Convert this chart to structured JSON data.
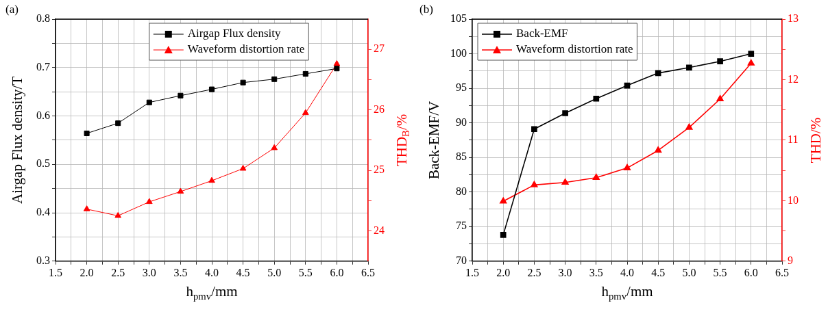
{
  "chart_data": [
    {
      "type": "line",
      "title": "(a)",
      "xlabel": "h$_{pmv}$/mm",
      "ylabel": "Airgap Flux density/T",
      "y2label": "THD$_{B}$/%",
      "x": [
        2.0,
        2.5,
        3.0,
        3.5,
        4.0,
        4.5,
        5.0,
        5.5,
        6.0
      ],
      "series": [
        {
          "name": "Airgap Flux density",
          "color": "#000000",
          "marker": "square",
          "values": [
            0.564,
            0.585,
            0.628,
            0.642,
            0.655,
            0.669,
            0.676,
            0.687,
            0.698
          ]
        },
        {
          "name": "Waveform distortion rate",
          "color": "#ff0000",
          "marker": "triangle",
          "axis": "y2",
          "values": [
            24.36,
            24.25,
            24.48,
            24.65,
            24.83,
            25.03,
            25.37,
            25.95,
            26.76
          ]
        }
      ],
      "xlim": [
        1.5,
        6.5
      ],
      "xticks": [
        {
          "value": 1.5,
          "label": "1.5"
        },
        {
          "value": 1.75,
          "label": null
        },
        {
          "value": 2,
          "label": "2.0"
        },
        {
          "value": 2.25,
          "label": null
        },
        {
          "value": 2.5,
          "label": "2.5"
        },
        {
          "value": 2.75,
          "label": null
        },
        {
          "value": 3,
          "label": "3.0"
        },
        {
          "value": 3.25,
          "label": null
        },
        {
          "value": 3.5,
          "label": "3.5"
        },
        {
          "value": 3.75,
          "label": null
        },
        {
          "value": 4,
          "label": "4.0"
        },
        {
          "value": 4.25,
          "label": null
        },
        {
          "value": 4.5,
          "label": "4.5"
        },
        {
          "value": 4.75,
          "label": null
        },
        {
          "value": 5,
          "label": "5.0"
        },
        {
          "value": 5.25,
          "label": null
        },
        {
          "value": 5.5,
          "label": "5.5"
        },
        {
          "value": 5.75,
          "label": null
        },
        {
          "value": 6,
          "label": "6.0"
        },
        {
          "value": 6.25,
          "label": null
        },
        {
          "value": 6.5,
          "label": "6.5"
        }
      ],
      "ylim": [
        0.3,
        0.8
      ],
      "yticks": [
        0.3,
        {
          "value": 0.35,
          "label": null
        },
        0.4,
        {
          "value": 0.45,
          "label": null
        },
        0.5,
        {
          "value": 0.55,
          "label": null
        },
        0.6,
        {
          "value": 0.65,
          "label": null
        },
        0.7,
        {
          "value": 0.75,
          "label": null
        },
        0.8
      ],
      "y2lim": [
        23.5,
        27.5
      ],
      "y2ticks": [
        24,
        {
          "value": 24.5,
          "label": null
        },
        25,
        {
          "value": 25.5,
          "label": null
        },
        26,
        {
          "value": 26.5,
          "label": null
        },
        27
      ],
      "grid": true,
      "legend": "top",
      "line_style": "solid"
    },
    {
      "type": "line",
      "title": "(b)",
      "xlabel": "h$_{pmv}$/mm",
      "ylabel": "Back-EMF/V",
      "y2label": "THD/%",
      "x": [
        2.0,
        2.5,
        3.0,
        3.5,
        4.0,
        4.5,
        5.0,
        5.5,
        6.0
      ],
      "series": [
        {
          "name": "Back-EMF",
          "color": "#000000",
          "marker": "square",
          "values": [
            73.8,
            89.1,
            91.4,
            93.5,
            95.4,
            97.2,
            98.0,
            98.9,
            100.0
          ]
        },
        {
          "name": "Waveform distortion rate",
          "color": "#ff0000",
          "marker": "triangle",
          "axis": "y2",
          "values": [
            9.99,
            10.26,
            10.3,
            10.38,
            10.54,
            10.83,
            11.21,
            11.68,
            12.27
          ]
        }
      ],
      "xlim": [
        1.5,
        6.5
      ],
      "xticks": [
        {
          "value": 1.5,
          "label": "1.5"
        },
        {
          "value": 1.75,
          "label": null
        },
        {
          "value": 2,
          "label": "2.0"
        },
        {
          "value": 2.25,
          "label": null
        },
        {
          "value": 2.5,
          "label": "2.5"
        },
        {
          "value": 2.75,
          "label": null
        },
        {
          "value": 3,
          "label": "3.0"
        },
        {
          "value": 3.25,
          "label": null
        },
        {
          "value": 3.5,
          "label": "3.5"
        },
        {
          "value": 3.75,
          "label": null
        },
        {
          "value": 4,
          "label": "4.0"
        },
        {
          "value": 4.25,
          "label": null
        },
        {
          "value": 4.5,
          "label": "4.5"
        },
        {
          "value": 4.75,
          "label": null
        },
        {
          "value": 5,
          "label": "5.0"
        },
        {
          "value": 5.25,
          "label": null
        },
        {
          "value": 5.5,
          "label": "5.5"
        },
        {
          "value": 5.75,
          "label": null
        },
        {
          "value": 6,
          "label": "6.0"
        },
        {
          "value": 6.25,
          "label": null
        },
        {
          "value": 6.5,
          "label": "6.5"
        }
      ],
      "ylim": [
        70,
        105
      ],
      "yticks": [
        70,
        {
          "value": 72.5,
          "label": null
        },
        75,
        {
          "value": 77.5,
          "label": null
        },
        80,
        {
          "value": 82.5,
          "label": null
        },
        85,
        {
          "value": 87.5,
          "label": null
        },
        90,
        {
          "value": 92.5,
          "label": null
        },
        95,
        {
          "value": 97.5,
          "label": null
        },
        100,
        {
          "value": 102.5,
          "label": null
        },
        105
      ],
      "y2lim": [
        9,
        13
      ],
      "y2ticks": [
        9,
        {
          "value": 9.5,
          "label": null
        },
        10,
        {
          "value": 10.5,
          "label": null
        },
        11,
        {
          "value": 11.5,
          "label": null
        },
        12,
        {
          "value": 12.5,
          "label": null
        },
        13
      ],
      "grid": true,
      "legend": "top left",
      "line_style": "solid"
    }
  ]
}
